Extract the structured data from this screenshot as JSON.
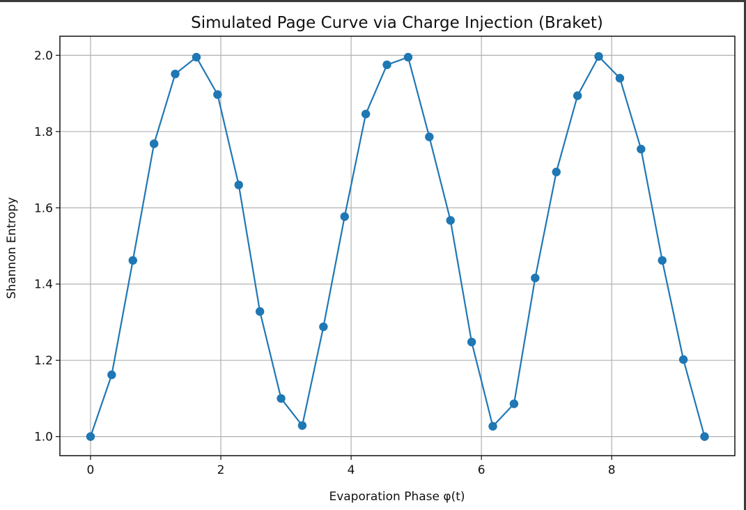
{
  "chart_data": {
    "type": "line",
    "title": "Simulated Page Curve via Charge Injection (Braket)",
    "xlabel": "Evaporation Phase φ(t)",
    "ylabel": "Shannon Entropy",
    "xlim": [
      -0.47,
      9.89
    ],
    "ylim": [
      0.95,
      2.05
    ],
    "x_ticks": [
      0,
      2,
      4,
      6,
      8
    ],
    "x_tick_labels": [
      "0",
      "2",
      "4",
      "6",
      "8"
    ],
    "y_ticks": [
      1.0,
      1.2,
      1.4,
      1.6,
      1.8,
      2.0
    ],
    "y_tick_labels": [
      "1.0",
      "1.2",
      "1.4",
      "1.6",
      "1.8",
      "2.0"
    ],
    "grid": true,
    "marker": "circle",
    "line_color": "#1f77b4",
    "series": [
      {
        "x": [
          0.0,
          0.325,
          0.65,
          0.975,
          1.3,
          1.625,
          1.95,
          2.275,
          2.6,
          2.925,
          3.25,
          3.575,
          3.9,
          4.225,
          4.55,
          4.875,
          5.2,
          5.525,
          5.85,
          6.175,
          6.5,
          6.825,
          7.15,
          7.475,
          7.8,
          8.125,
          8.45,
          8.775,
          9.1,
          9.425
        ],
        "y": [
          1.0,
          1.162,
          1.462,
          1.768,
          1.951,
          1.995,
          1.897,
          1.66,
          1.328,
          1.1,
          1.029,
          1.288,
          1.577,
          1.846,
          1.975,
          1.995,
          1.786,
          1.567,
          1.248,
          1.027,
          1.086,
          1.416,
          1.694,
          1.894,
          1.997,
          1.94,
          1.754,
          1.462,
          1.202,
          1.0
        ]
      }
    ]
  }
}
